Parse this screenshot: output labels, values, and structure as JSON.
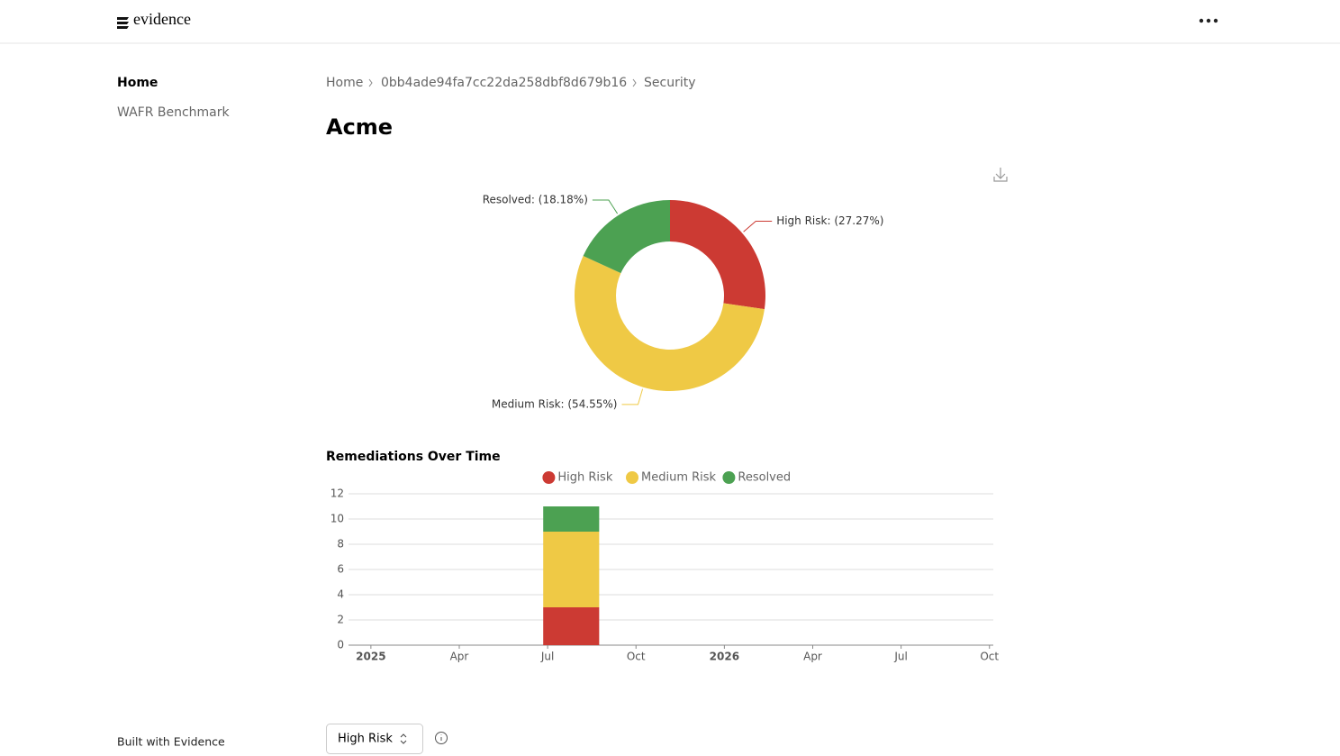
{
  "header": {
    "logo": "evidence"
  },
  "sidebar": {
    "items": [
      "Home",
      "WAFR Benchmark"
    ],
    "footer": "Built with Evidence"
  },
  "breadcrumb": [
    "Home",
    "0bb4ade94fa7cc22da258dbf8d679b16",
    "Security"
  ],
  "page_title": "Acme",
  "controls": {
    "dropdown": "High Risk"
  },
  "chart_data": [
    {
      "type": "pie",
      "donut": true,
      "values": [
        27.27,
        54.55,
        18.18
      ],
      "value_labels": [
        "High Risk: (27.27%)",
        "Medium Risk: (54.55%)",
        "Resolved: (18.18%)"
      ],
      "colors": [
        "#cc3a33",
        "#efc945",
        "#4ca152"
      ]
    },
    {
      "type": "bar",
      "stacked": true,
      "title": "Remediations Over Time",
      "grid": true,
      "x": [
        6.8
      ],
      "series": [
        {
          "name": "High Risk",
          "color": "#cc3a33",
          "values": [
            3
          ]
        },
        {
          "name": "Medium Risk",
          "color": "#efc945",
          "values": [
            6
          ]
        },
        {
          "name": "Resolved",
          "color": "#4ca152",
          "values": [
            2
          ]
        }
      ],
      "xlim": [
        -0.76,
        21.13
      ],
      "xticks": [
        {
          "value": 0,
          "label": "2025"
        },
        {
          "value": 3,
          "label": "Apr"
        },
        {
          "value": 6,
          "label": "Jul"
        },
        {
          "value": 9,
          "label": "Oct"
        },
        {
          "value": 12,
          "label": "2026"
        },
        {
          "value": 15,
          "label": "Apr"
        },
        {
          "value": 18,
          "label": "Jul"
        },
        {
          "value": 21,
          "label": "Oct"
        }
      ],
      "ylim": [
        0,
        12
      ],
      "yticks": [
        0,
        2,
        4,
        6,
        8,
        10,
        12
      ]
    }
  ]
}
